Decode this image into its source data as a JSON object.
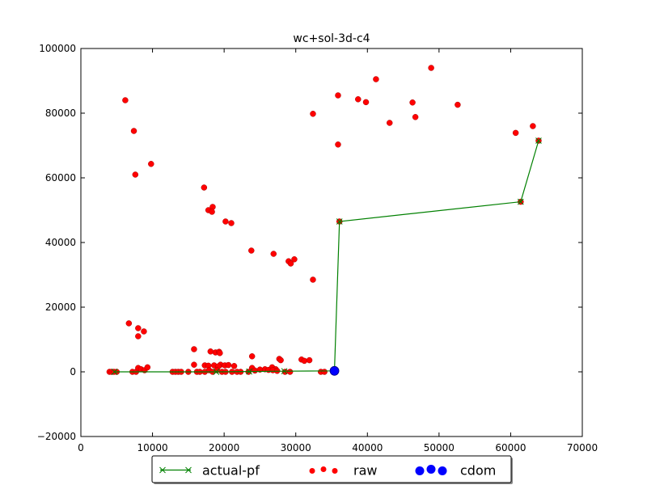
{
  "chart_data": {
    "type": "scatter",
    "title": "wc+sol-3d-c4",
    "xlabel": "",
    "ylabel": "",
    "xlim": [
      0,
      70000
    ],
    "ylim": [
      -20000,
      100000
    ],
    "x_ticks": [
      0,
      10000,
      20000,
      30000,
      40000,
      50000,
      60000,
      70000
    ],
    "y_ticks": [
      -20000,
      0,
      20000,
      40000,
      60000,
      80000,
      100000
    ],
    "x_tick_labels": [
      "0",
      "10000",
      "20000",
      "30000",
      "40000",
      "50000",
      "60000",
      "70000"
    ],
    "y_tick_labels": [
      "−20000",
      "0",
      "20000",
      "40000",
      "60000",
      "80000",
      "100000"
    ],
    "grid": false,
    "legend": {
      "position": "bottom-center-outside"
    },
    "series": [
      {
        "name": "raw",
        "kind": "scatter",
        "color": "#ff0000",
        "points": [
          [
            6200,
            84000
          ],
          [
            7400,
            74500
          ],
          [
            7600,
            61000
          ],
          [
            9800,
            64300
          ],
          [
            17200,
            57000
          ],
          [
            18400,
            51000
          ],
          [
            17800,
            50000
          ],
          [
            18300,
            49500
          ],
          [
            20200,
            46500
          ],
          [
            21000,
            46000
          ],
          [
            23800,
            37500
          ],
          [
            26900,
            36500
          ],
          [
            29000,
            34200
          ],
          [
            29800,
            34800
          ],
          [
            29300,
            33500
          ],
          [
            32400,
            28500
          ],
          [
            32400,
            79800
          ],
          [
            35900,
            85500
          ],
          [
            35900,
            70300
          ],
          [
            38700,
            84300
          ],
          [
            39800,
            83400
          ],
          [
            41200,
            90500
          ],
          [
            43100,
            77000
          ],
          [
            46300,
            83300
          ],
          [
            46700,
            78800
          ],
          [
            48900,
            94000
          ],
          [
            52600,
            82600
          ],
          [
            60700,
            73900
          ],
          [
            63100,
            76000
          ],
          [
            63900,
            71500
          ],
          [
            61400,
            52600
          ],
          [
            36100,
            46500
          ],
          [
            6700,
            15000
          ],
          [
            8000,
            13500
          ],
          [
            8800,
            12500
          ],
          [
            8000,
            11000
          ],
          [
            15800,
            7000
          ],
          [
            18100,
            6300
          ],
          [
            18800,
            6000
          ],
          [
            19300,
            6200
          ],
          [
            19400,
            5800
          ],
          [
            23900,
            4800
          ],
          [
            27700,
            4000
          ],
          [
            27900,
            3600
          ],
          [
            30800,
            3800
          ],
          [
            31200,
            3400
          ],
          [
            31900,
            3600
          ],
          [
            15800,
            2200
          ],
          [
            17300,
            2000
          ],
          [
            17800,
            1900
          ],
          [
            18600,
            2000
          ],
          [
            19500,
            2200
          ],
          [
            20100,
            2000
          ],
          [
            20600,
            2100
          ],
          [
            21400,
            1800
          ],
          [
            19200,
            1700
          ],
          [
            23900,
            1200
          ],
          [
            26700,
            1400
          ],
          [
            27200,
            800
          ],
          [
            4000,
            0
          ],
          [
            4300,
            0
          ],
          [
            4600,
            0
          ],
          [
            5000,
            0
          ],
          [
            7200,
            0
          ],
          [
            7700,
            0
          ],
          [
            8000,
            1200
          ],
          [
            8400,
            800
          ],
          [
            8900,
            500
          ],
          [
            9300,
            1400
          ],
          [
            12800,
            0
          ],
          [
            13200,
            0
          ],
          [
            13600,
            0
          ],
          [
            14000,
            0
          ],
          [
            15000,
            0
          ],
          [
            16200,
            0
          ],
          [
            16600,
            0
          ],
          [
            17300,
            0
          ],
          [
            17900,
            500
          ],
          [
            18400,
            0
          ],
          [
            19000,
            500
          ],
          [
            19700,
            0
          ],
          [
            20200,
            0
          ],
          [
            21100,
            0
          ],
          [
            21800,
            0
          ],
          [
            22300,
            0
          ],
          [
            23400,
            0
          ],
          [
            24300,
            400
          ],
          [
            25000,
            700
          ],
          [
            25700,
            800
          ],
          [
            26200,
            600
          ],
          [
            26800,
            500
          ],
          [
            27400,
            300
          ],
          [
            28500,
            0
          ],
          [
            29200,
            0
          ],
          [
            33500,
            0
          ],
          [
            34000,
            0
          ]
        ]
      },
      {
        "name": "actual-pf",
        "kind": "line",
        "color": "#008000",
        "points": [
          [
            4700,
            0
          ],
          [
            18900,
            0
          ],
          [
            23500,
            100
          ],
          [
            28400,
            200
          ],
          [
            35400,
            300
          ],
          [
            36100,
            46500
          ],
          [
            61400,
            52600
          ],
          [
            63900,
            71500
          ]
        ]
      },
      {
        "name": "cdom",
        "kind": "scatter",
        "color": "#0000ff",
        "points": [
          [
            35400,
            300
          ]
        ]
      }
    ]
  }
}
